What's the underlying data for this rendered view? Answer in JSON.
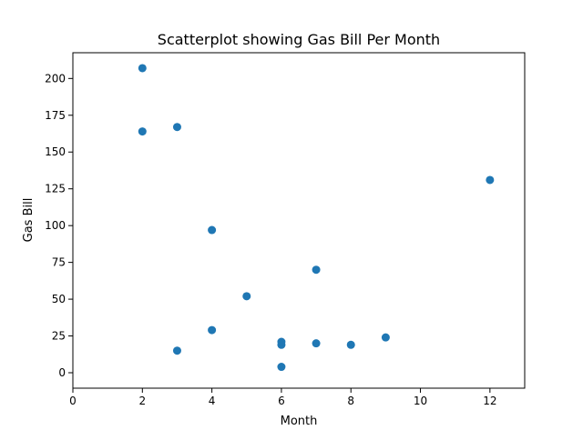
{
  "chart_data": {
    "type": "scatter",
    "title": "Scatterplot showing Gas Bill Per Month",
    "xlabel": "Month",
    "ylabel": "Gas Bill",
    "xlim": [
      0,
      13
    ],
    "ylim": [
      -10.5,
      217.5
    ],
    "xticks": [
      0,
      2,
      4,
      6,
      8,
      10,
      12
    ],
    "yticks": [
      0,
      25,
      50,
      75,
      100,
      125,
      150,
      175,
      200
    ],
    "grid": false,
    "color": "#1f77b4",
    "series": [
      {
        "points": [
          {
            "x": 2,
            "y": 207
          },
          {
            "x": 2,
            "y": 164
          },
          {
            "x": 3,
            "y": 167
          },
          {
            "x": 3,
            "y": 15
          },
          {
            "x": 4,
            "y": 97
          },
          {
            "x": 4,
            "y": 29
          },
          {
            "x": 5,
            "y": 52
          },
          {
            "x": 6,
            "y": 21
          },
          {
            "x": 6,
            "y": 19
          },
          {
            "x": 6,
            "y": 4
          },
          {
            "x": 7,
            "y": 70
          },
          {
            "x": 7,
            "y": 20
          },
          {
            "x": 8,
            "y": 19
          },
          {
            "x": 9,
            "y": 24
          },
          {
            "x": 12,
            "y": 131
          }
        ]
      }
    ]
  }
}
